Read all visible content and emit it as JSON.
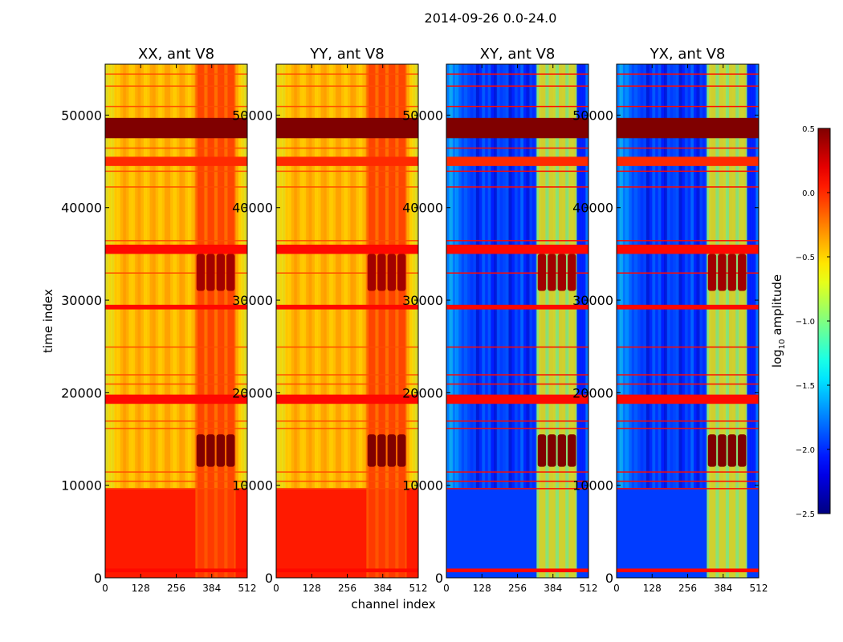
{
  "title": "2014-09-26 0.0-24.0",
  "chart_data": {
    "type": "heatmap",
    "suptitle": "2014-09-26 0.0-24.0",
    "xlabel": "channel index",
    "ylabel": "time index",
    "xlim": [
      0,
      512
    ],
    "ylim": [
      0,
      55500
    ],
    "xticks": [
      0,
      128,
      256,
      384,
      512
    ],
    "yticks": [
      0,
      10000,
      20000,
      30000,
      40000,
      50000
    ],
    "panels": [
      {
        "title": "XX, ant V8",
        "pol": "XX",
        "base_level": -0.35,
        "early_level": 0.05,
        "cross": false
      },
      {
        "title": "YY, ant V8",
        "pol": "YY",
        "base_level": -0.35,
        "early_level": 0.05,
        "cross": false
      },
      {
        "title": "XY, ant V8",
        "pol": "XY",
        "base_level": -1.95,
        "early_level": -1.95,
        "cross": true
      },
      {
        "title": "YX, ant V8",
        "pol": "YX",
        "base_level": -1.95,
        "early_level": -1.95,
        "cross": true
      }
    ],
    "bright_channel_range": [
      325,
      470
    ],
    "bright_blocks": [
      {
        "time_range": [
          12000,
          15500
        ],
        "level": 0.5
      },
      {
        "time_range": [
          31000,
          35000
        ],
        "level": 0.4
      }
    ],
    "full_bands": [
      {
        "time_range": [
          47500,
          49700
        ],
        "level": 0.5
      },
      {
        "time_range": [
          35000,
          36000
        ],
        "level": 0.1
      },
      {
        "time_range": [
          29000,
          29500
        ],
        "level": 0.1
      },
      {
        "time_range": [
          18800,
          19800
        ],
        "level": 0.1
      },
      {
        "time_range": [
          44500,
          45500
        ],
        "level": 0.0
      },
      {
        "time_range": [
          600,
          1000
        ],
        "level": 0.1
      }
    ],
    "colorbar": {
      "label": "log10 amplitude",
      "label_main": "log",
      "label_sub": "10",
      "label_rest": " amplitude",
      "range": [
        -2.5,
        0.5
      ],
      "ticks": [
        -2.5,
        -2.0,
        -1.5,
        -1.0,
        -0.5,
        0.0,
        0.5
      ],
      "tick_labels": [
        "−2.5",
        "−2.0",
        "−1.5",
        "−1.0",
        "−0.5",
        "0.0",
        "0.5"
      ],
      "colormap": "jet"
    }
  }
}
